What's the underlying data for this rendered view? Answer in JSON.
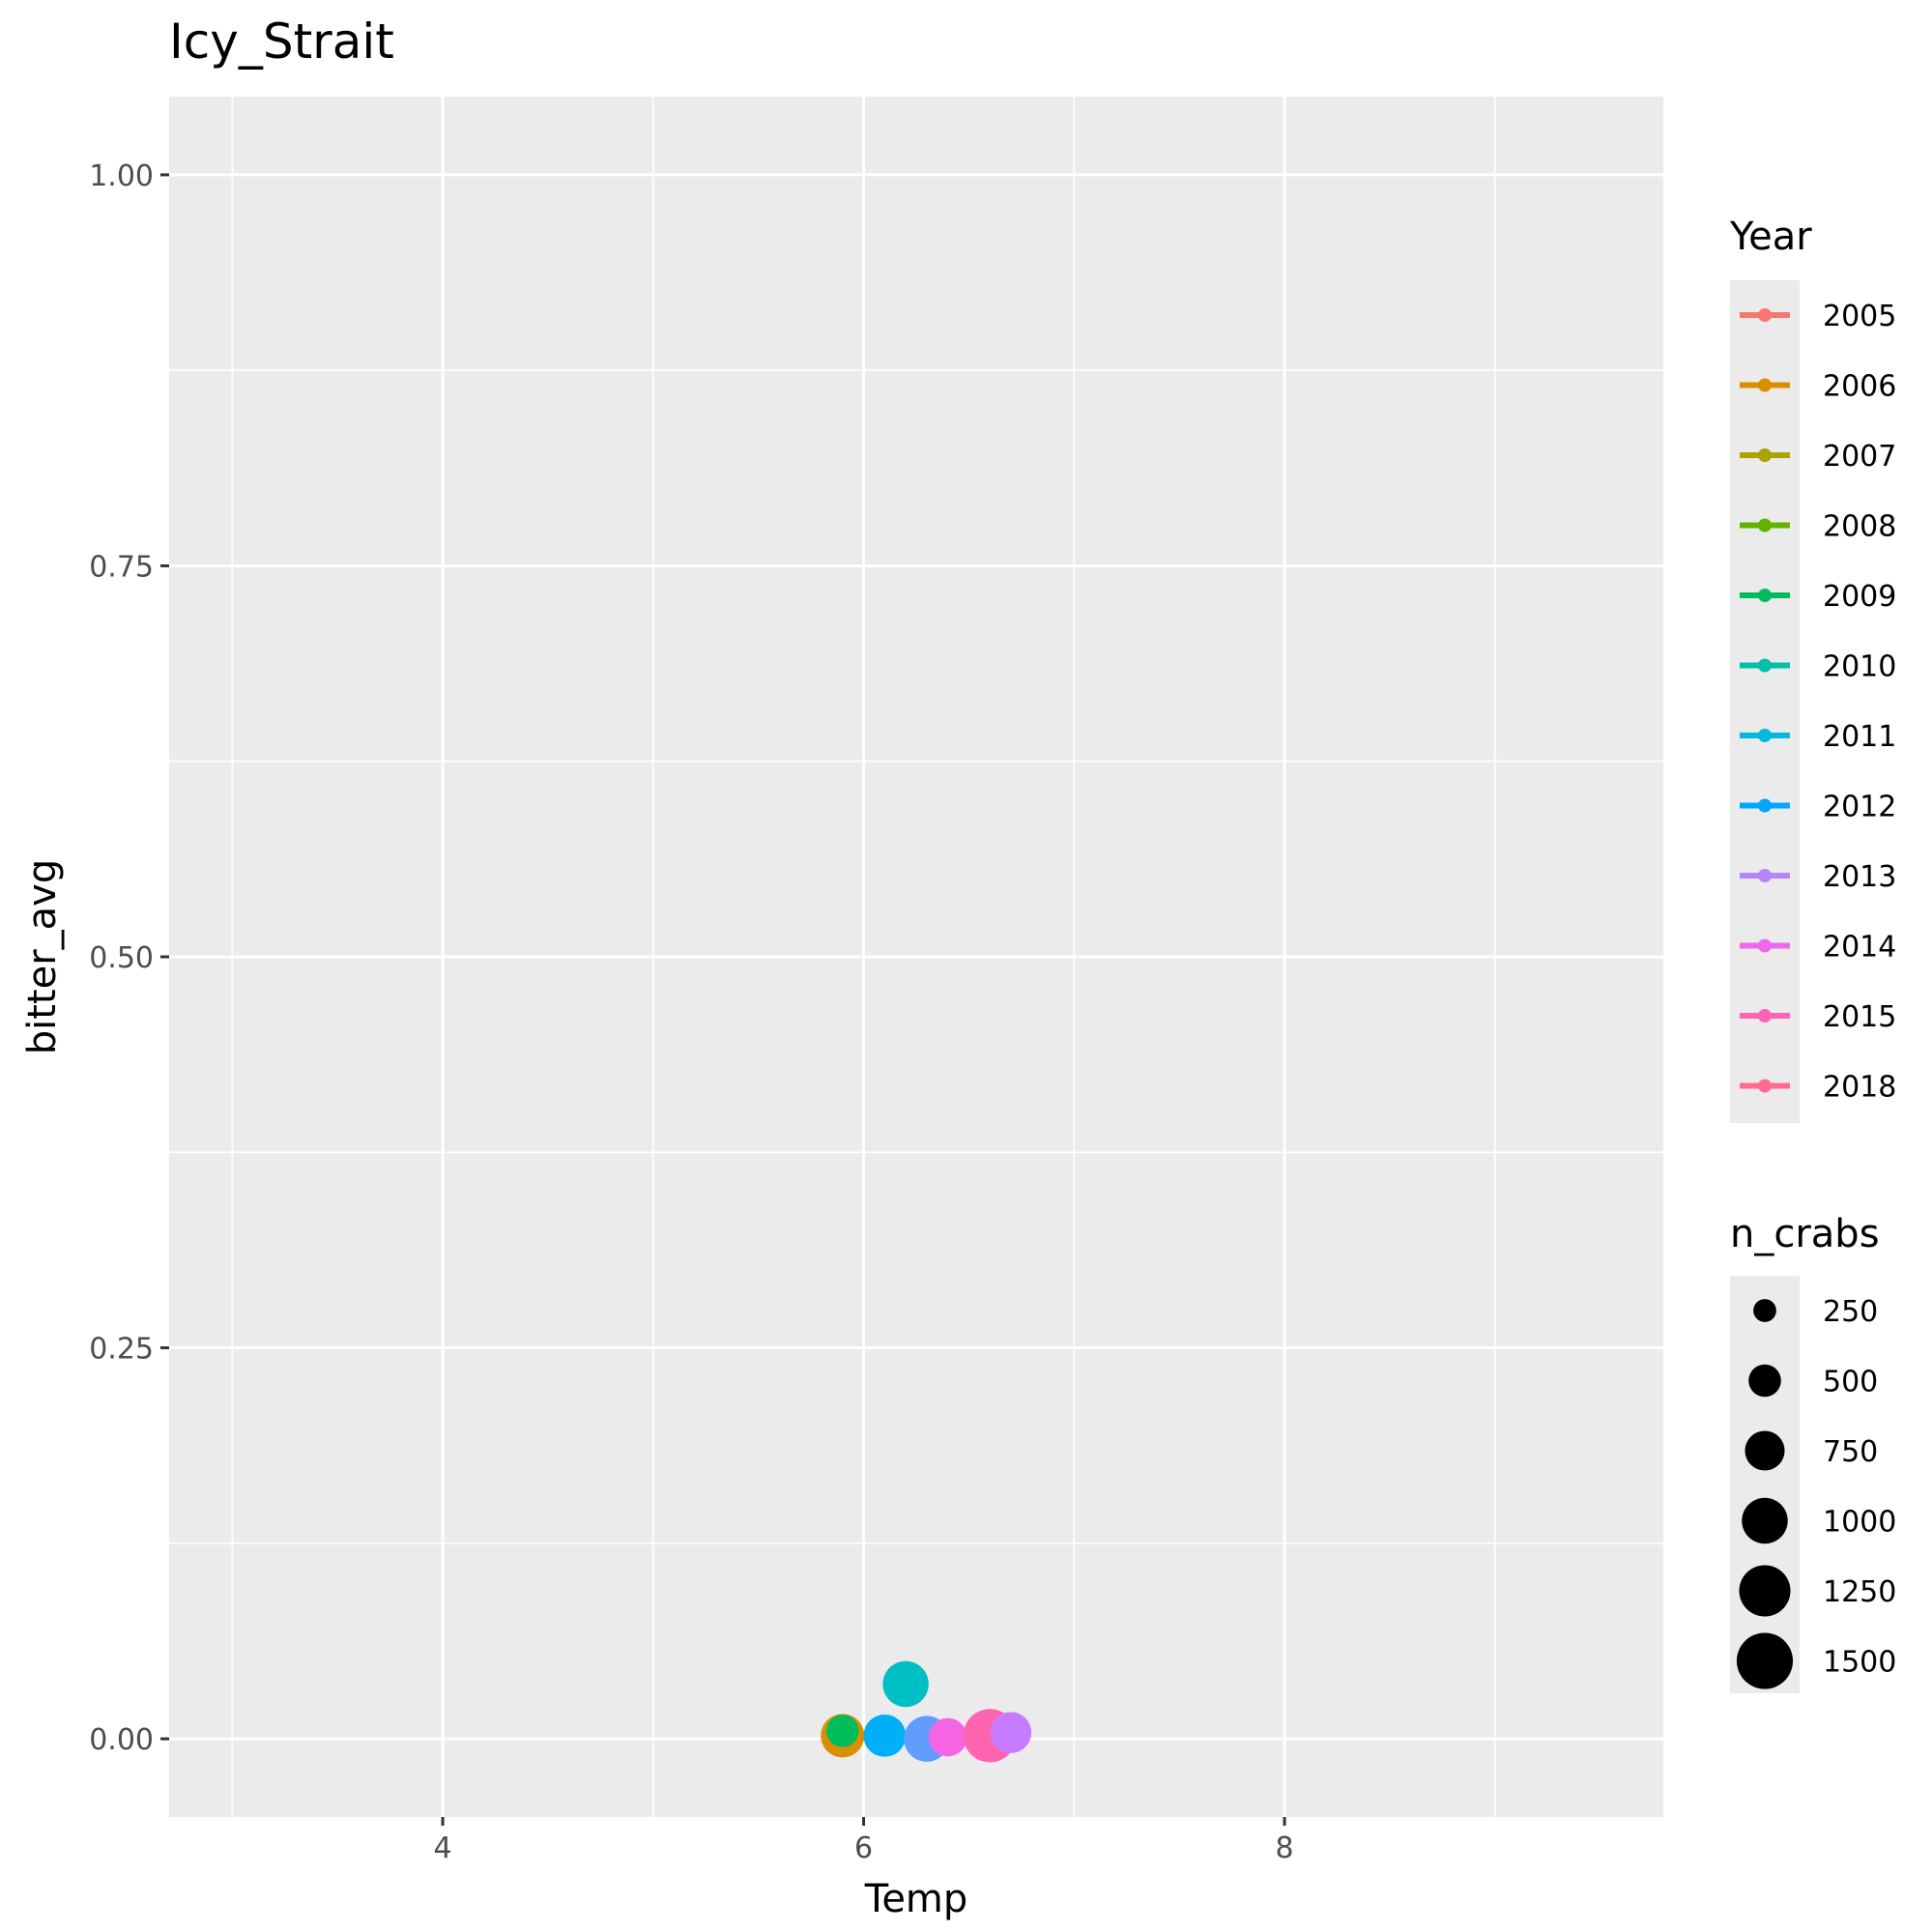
{
  "chart_data": {
    "type": "scatter",
    "title": "Icy_Strait",
    "xlabel": "Temp",
    "ylabel": "bitter_avg",
    "xlim": [
      2.7,
      9.8
    ],
    "ylim": [
      -0.05,
      1.05
    ],
    "x_ticks": [
      4,
      6,
      8
    ],
    "y_ticks": [
      0.0,
      0.25,
      0.5,
      0.75,
      1.0
    ],
    "x_tick_labels": [
      "4",
      "6",
      "8"
    ],
    "y_tick_labels": [
      "0.00",
      "0.25",
      "0.50",
      "0.75",
      "1.00"
    ],
    "x_minor_ticks": [
      3,
      5,
      7,
      9
    ],
    "y_minor_ticks": [
      0.125,
      0.375,
      0.625,
      0.875
    ],
    "grid": true,
    "panel_background": "#ebebeb",
    "legend_position": "right",
    "color_legend": {
      "title": "Year",
      "entries": [
        {
          "label": "2005",
          "color": "#F8766D"
        },
        {
          "label": "2006",
          "color": "#DB8E00"
        },
        {
          "label": "2007",
          "color": "#AEA200"
        },
        {
          "label": "2008",
          "color": "#64B200"
        },
        {
          "label": "2009",
          "color": "#00BD5C"
        },
        {
          "label": "2010",
          "color": "#00C1A7"
        },
        {
          "label": "2011",
          "color": "#00BADE"
        },
        {
          "label": "2012",
          "color": "#00A6FF"
        },
        {
          "label": "2013",
          "color": "#B385FF"
        },
        {
          "label": "2014",
          "color": "#EF67EB"
        },
        {
          "label": "2015",
          "color": "#FF63B6"
        },
        {
          "label": "2018",
          "color": "#FF6C91"
        }
      ]
    },
    "size_legend": {
      "title": "n_crabs",
      "entries": [
        {
          "label": "250",
          "value": 250
        },
        {
          "label": "500",
          "value": 500
        },
        {
          "label": "750",
          "value": 750
        },
        {
          "label": "1000",
          "value": 1000
        },
        {
          "label": "1250",
          "value": 1250
        },
        {
          "label": "1500",
          "value": 1500
        }
      ]
    },
    "size_range": [
      0,
      1600
    ],
    "points": [
      {
        "year": "2006",
        "x": 5.9,
        "y": 0.002,
        "n": 900,
        "color": "#DB8E00"
      },
      {
        "year": "2009",
        "x": 5.9,
        "y": 0.005,
        "n": 500,
        "color": "#00BD5C"
      },
      {
        "year": "2011",
        "x": 6.2,
        "y": 0.035,
        "n": 1000,
        "color": "#00BFC4"
      },
      {
        "year": "2012",
        "x": 6.1,
        "y": 0.002,
        "n": 850,
        "color": "#00B0F6"
      },
      {
        "year": "2013",
        "x": 6.3,
        "y": 0.0,
        "n": 1000,
        "color": "#619CFF"
      },
      {
        "year": "2015",
        "x": 6.4,
        "y": 0.001,
        "n": 700,
        "color": "#F564E3"
      },
      {
        "year": "2018",
        "x": 6.6,
        "y": 0.002,
        "n": 1350,
        "color": "#FF64B0"
      },
      {
        "year": "2014",
        "x": 6.7,
        "y": 0.004,
        "n": 800,
        "color": "#C77CFF"
      }
    ]
  }
}
